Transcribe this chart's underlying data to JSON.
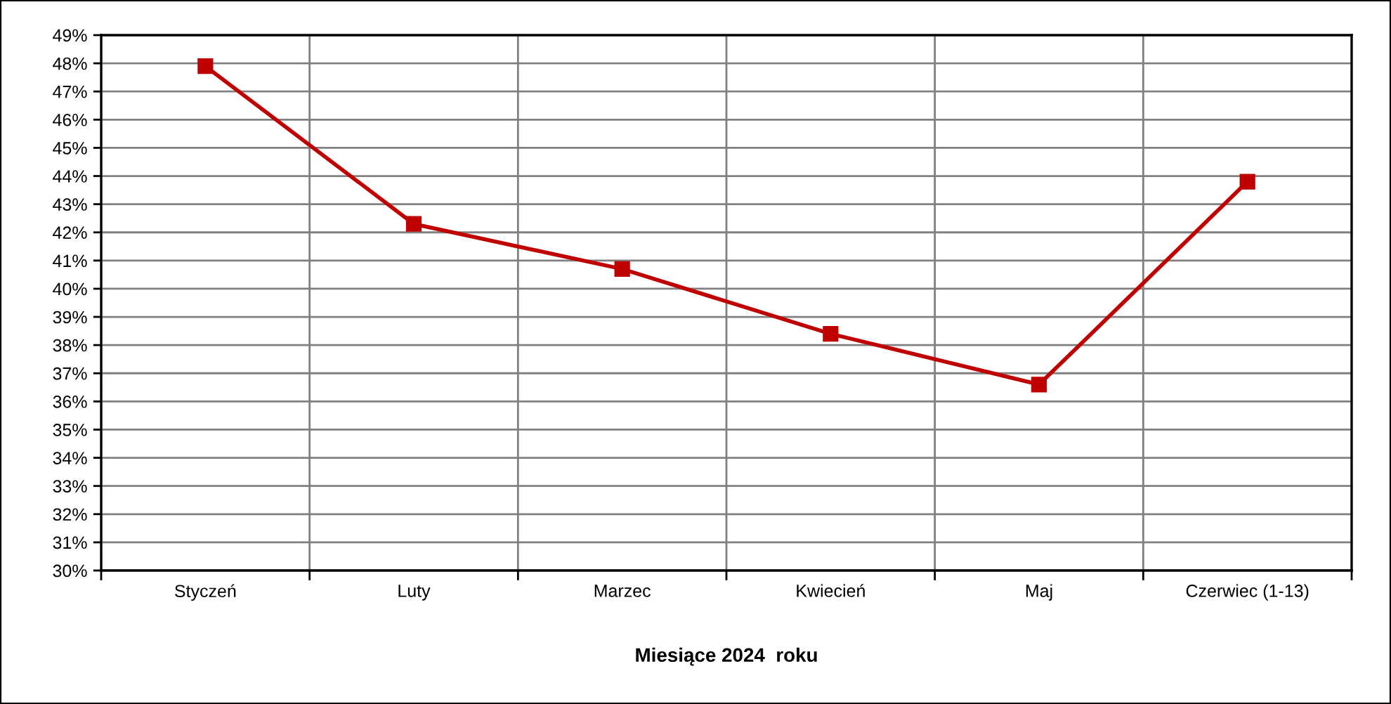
{
  "chart_data": {
    "type": "line",
    "categories": [
      "Styczeń",
      "Luty",
      "Marzec",
      "Kwiecień",
      "Maj",
      "Czerwiec (1-13)"
    ],
    "series": [
      {
        "color": "#c00000",
        "values": [
          47.9,
          42.3,
          40.7,
          38.4,
          36.6,
          43.8
        ]
      }
    ],
    "xlabel": "Miesiące 2024  roku",
    "ylim": [
      30,
      49
    ],
    "yticks": [
      {
        "value": 30,
        "label": "30%"
      },
      {
        "value": 31,
        "label": "31%"
      },
      {
        "value": 32,
        "label": "32%"
      },
      {
        "value": 33,
        "label": "33%"
      },
      {
        "value": 34,
        "label": "34%"
      },
      {
        "value": 35,
        "label": "35%"
      },
      {
        "value": 36,
        "label": "36%"
      },
      {
        "value": 37,
        "label": "37%"
      },
      {
        "value": 38,
        "label": "38%"
      },
      {
        "value": 39,
        "label": "39%"
      },
      {
        "value": 40,
        "label": "40%"
      },
      {
        "value": 41,
        "label": "41%"
      },
      {
        "value": 42,
        "label": "42%"
      },
      {
        "value": 43,
        "label": "43%"
      },
      {
        "value": 44,
        "label": "44%"
      },
      {
        "value": 45,
        "label": "45%"
      },
      {
        "value": 46,
        "label": "46%"
      },
      {
        "value": 47,
        "label": "47%"
      },
      {
        "value": 48,
        "label": "48%"
      },
      {
        "value": 49,
        "label": "49%"
      }
    ],
    "grid": true,
    "marker": "square",
    "line_style": "solid"
  }
}
